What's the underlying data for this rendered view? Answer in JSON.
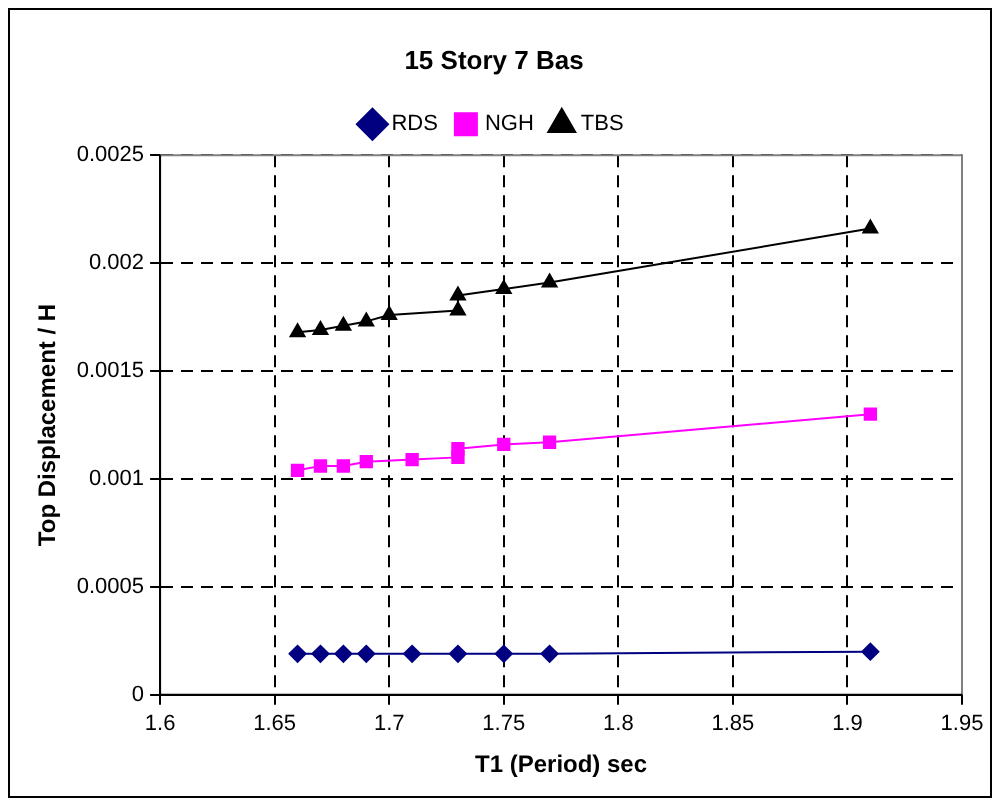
{
  "chart_data": {
    "type": "line",
    "title": "15 Story 7 Bas",
    "xlabel": "T1 (Period) sec",
    "ylabel": "Top Displacement / H",
    "xlim": [
      1.6,
      1.95
    ],
    "xticks": [
      1.6,
      1.65,
      1.7,
      1.75,
      1.8,
      1.85,
      1.9,
      1.95
    ],
    "ylim": [
      0,
      0.0025
    ],
    "yticks": [
      0,
      0.0005,
      0.001,
      0.0015,
      0.002,
      0.0025
    ],
    "grid": true,
    "legend": "top",
    "line_style": "solid",
    "series": [
      {
        "name": "RDS",
        "color": "#000080",
        "marker": "diamond",
        "x": [
          1.66,
          1.67,
          1.68,
          1.69,
          1.71,
          1.73,
          1.75,
          1.77,
          1.91
        ],
        "values": [
          0.00019,
          0.00019,
          0.00019,
          0.00019,
          0.00019,
          0.00019,
          0.00019,
          0.00019,
          0.0002
        ]
      },
      {
        "name": "NGH",
        "color": "#ff00ff",
        "marker": "square",
        "x": [
          1.66,
          1.67,
          1.68,
          1.69,
          1.71,
          1.73,
          1.73,
          1.75,
          1.77,
          1.91
        ],
        "values": [
          0.00104,
          0.00106,
          0.00106,
          0.00108,
          0.00109,
          0.0011,
          0.00114,
          0.00116,
          0.00117,
          0.0013
        ]
      },
      {
        "name": "TBS",
        "color": "#000000",
        "marker": "triangle",
        "x": [
          1.66,
          1.67,
          1.68,
          1.69,
          1.7,
          1.73,
          1.73,
          1.75,
          1.77,
          1.91
        ],
        "values": [
          0.00168,
          0.00169,
          0.00171,
          0.00173,
          0.00176,
          0.00178,
          0.00185,
          0.00188,
          0.00191,
          0.00216
        ]
      }
    ]
  }
}
